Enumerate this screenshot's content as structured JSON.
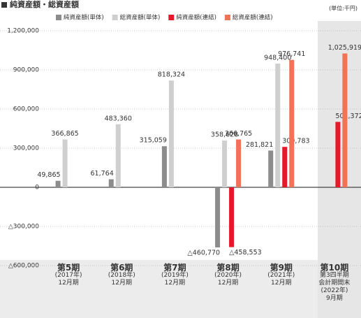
{
  "chart_data": {
    "type": "bar",
    "title": "純資産額・総資産額",
    "unit_label": "(単位:千円)",
    "categories": [
      "第5期\n(2017年)\n12月期",
      "第6期\n(2018年)\n12月期",
      "第7期\n(2019年)\n12月期",
      "第8期\n(2020年)\n12月期",
      "第9期\n(2021年)\n12月期",
      "第10期\n第3四半期\n会計期間末\n(2022年)\n9月期"
    ],
    "series": [
      {
        "name": "純資産額(単体)",
        "color": "#8c8c8c",
        "values": [
          49865,
          61764,
          315059,
          -460770,
          281821,
          null
        ],
        "value_labels": [
          "49,865",
          "61,764",
          "315,059",
          "△460,770",
          "281,821",
          null
        ]
      },
      {
        "name": "総資産額(単体)",
        "color": "#cfcfcf",
        "values": [
          366865,
          483360,
          818324,
          358628,
          948400,
          null
        ],
        "value_labels": [
          "366,865",
          "483,360",
          "818,324",
          "358,628",
          "948,400",
          null
        ]
      },
      {
        "name": "純資産額(連結)",
        "color": "#e5192a",
        "values": [
          null,
          null,
          null,
          -458553,
          309783,
          501372
        ],
        "value_labels": [
          null,
          null,
          null,
          "△458,553",
          "309,783",
          "501,372"
        ]
      },
      {
        "name": "総資産額(連結)",
        "color": "#f07356",
        "values": [
          null,
          null,
          null,
          366765,
          976741,
          1025919
        ],
        "value_labels": [
          null,
          null,
          null,
          "366,765",
          "976,741",
          "1,025,919"
        ]
      }
    ],
    "ylim": [
      -600000,
      1275000
    ],
    "yticks": [
      {
        "value": -600000,
        "label": "△600,000"
      },
      {
        "value": -300000,
        "label": "△300,000"
      },
      0,
      {
        "value": 300000,
        "label": "300,000"
      },
      {
        "value": 600000,
        "label": "600,000"
      },
      {
        "value": 900000,
        "label": "900,000"
      },
      {
        "value": 1200000,
        "label": "1,200,000"
      }
    ],
    "grid": true
  }
}
